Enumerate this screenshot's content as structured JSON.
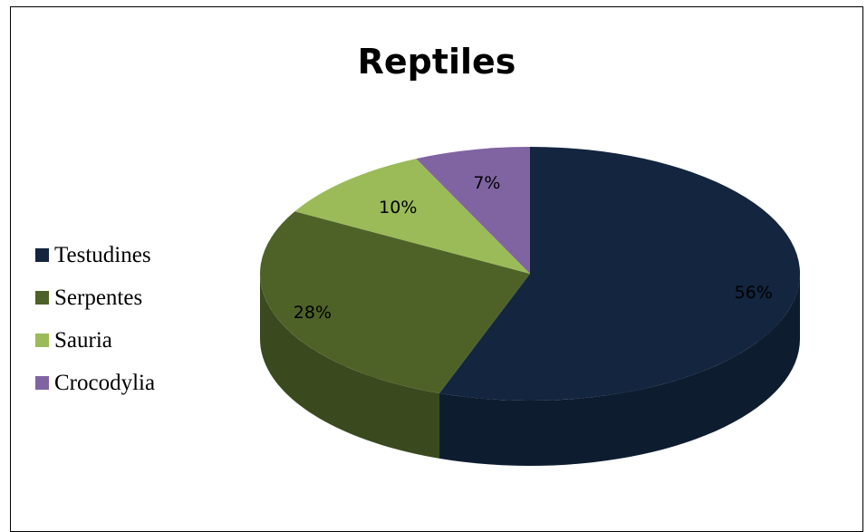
{
  "chart_data": {
    "type": "pie",
    "title": "Reptiles",
    "categories": [
      "Testudines",
      "Serpentes",
      "Sauria",
      "Crocodylia"
    ],
    "values": [
      56,
      28,
      10,
      7
    ],
    "labels": [
      "56%",
      "28%",
      "10%",
      "7%"
    ],
    "colors": [
      "#13253f",
      "#4e6228",
      "#9bbb59",
      "#8064a2"
    ],
    "side_colors": [
      "#0e1c30",
      "#3b4a1e",
      "#748c43",
      "#604b7a"
    ],
    "legend_position": "left",
    "style": "3d"
  }
}
